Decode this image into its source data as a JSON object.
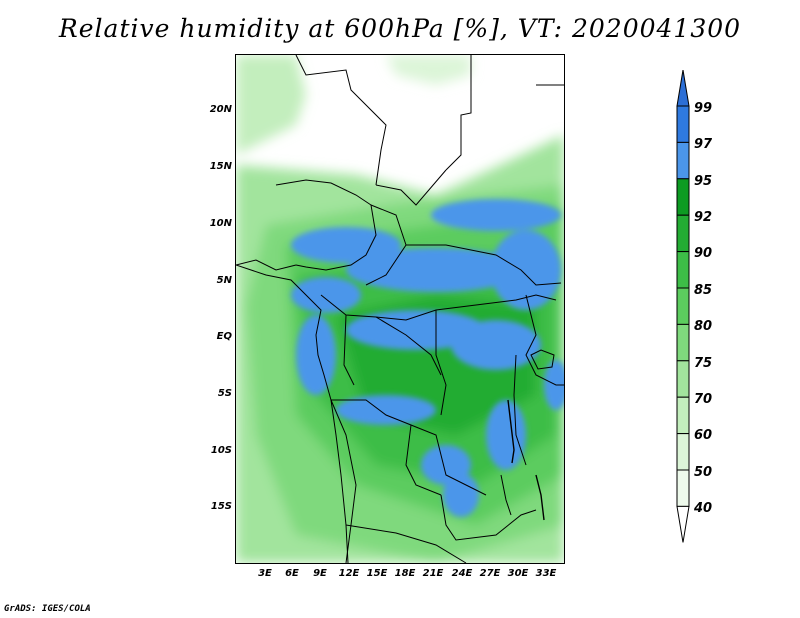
{
  "title": "Relative humidity at 600hPa [%], VT: 2020041300",
  "credit": "GrADS: IGES/COLA",
  "map": {
    "lat_ticks": [
      "20N",
      "15N",
      "10N",
      "5N",
      "EQ",
      "5S",
      "10S",
      "15S"
    ],
    "lon_ticks": [
      "3E",
      "6E",
      "9E",
      "12E",
      "15E",
      "18E",
      "21E",
      "24E",
      "27E",
      "30E",
      "33E"
    ],
    "lon_range": [
      0,
      35
    ],
    "lat_range": [
      -20,
      25
    ]
  },
  "colorbar": {
    "labels": [
      "99",
      "97",
      "95",
      "92",
      "90",
      "85",
      "80",
      "75",
      "70",
      "60",
      "50",
      "40"
    ],
    "bins": [
      {
        "range": "99+",
        "color": "#2c6fd6"
      },
      {
        "range": "97-99",
        "color": "#2f7ae0"
      },
      {
        "range": "95-97",
        "color": "#4b96ea"
      },
      {
        "range": "92-95",
        "color": "#0d9b22"
      },
      {
        "range": "90-92",
        "color": "#23ac33"
      },
      {
        "range": "85-90",
        "color": "#3dbd47"
      },
      {
        "range": "80-85",
        "color": "#5ccc5e"
      },
      {
        "range": "75-80",
        "color": "#7fd97d"
      },
      {
        "range": "70-75",
        "color": "#a2e49d"
      },
      {
        "range": "60-70",
        "color": "#c3eebd"
      },
      {
        "range": "50-60",
        "color": "#dcf5d8"
      },
      {
        "range": "40-50",
        "color": "#eefaec"
      },
      {
        "range": "<40",
        "color": "#ffffff"
      }
    ]
  }
}
